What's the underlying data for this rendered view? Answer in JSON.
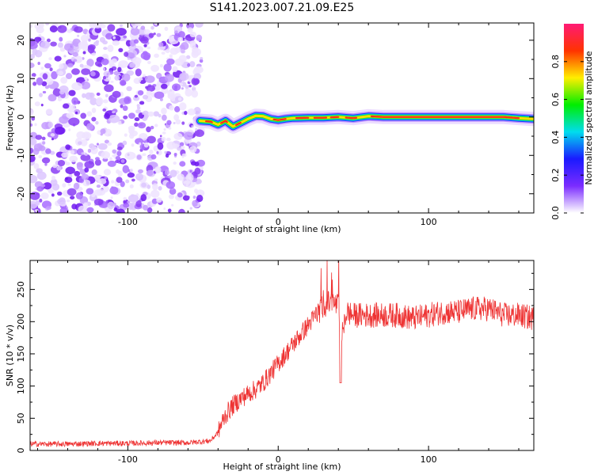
{
  "figure": {
    "title": "S141.2023.007.21.09.E25"
  },
  "chart_data": [
    {
      "type": "heatmap",
      "title": "S141.2023.007.21.09.E25",
      "xlabel": "Height of straight line (km)",
      "ylabel": "Frequency (Hz)",
      "xlim": [
        -165,
        170
      ],
      "ylim": [
        -25,
        24.5
      ],
      "xticks": [
        -100,
        0,
        100
      ],
      "yticks": [
        -20,
        -10,
        0,
        10,
        20
      ],
      "noise_region_x": [
        -165,
        -55
      ],
      "signal_trace": {
        "x": [
          -52,
          -45,
          -40,
          -35,
          -30,
          -25,
          -20,
          -15,
          -10,
          -5,
          0,
          5,
          10,
          20,
          30,
          40,
          50,
          60,
          70,
          80,
          90,
          100,
          110,
          120,
          130,
          140,
          150,
          160,
          170
        ],
        "freq": [
          -1.0,
          -1.2,
          -2.0,
          -1.0,
          -2.5,
          -1.5,
          -0.5,
          0.3,
          0.2,
          -0.5,
          -0.8,
          -0.5,
          -0.3,
          -0.2,
          -0.2,
          0.0,
          -0.3,
          0.2,
          0.0,
          0.0,
          0.0,
          0.0,
          0.0,
          0.0,
          0.0,
          0.0,
          0.0,
          -0.3,
          -0.5
        ]
      },
      "colorbar": {
        "label": "Normalized spectral amplitude",
        "range": [
          0,
          1
        ],
        "ticks": [
          "0.0",
          "0.2",
          "0.4",
          "0.6",
          "0.8"
        ],
        "colors": [
          "#ffffff",
          "#7b2cff",
          "#1a1aff",
          "#00ddee",
          "#00ee00",
          "#ffee00",
          "#ff3300",
          "#ff1a75"
        ]
      }
    },
    {
      "type": "line",
      "xlabel": "Height of straight line (km)",
      "ylabel": "SNR (10 * v/v)",
      "xlim": [
        -165,
        170
      ],
      "ylim": [
        0,
        295
      ],
      "xticks": [
        -100,
        0,
        100
      ],
      "yticks": [
        0,
        50,
        100,
        150,
        200,
        250
      ],
      "color": "#ee3333",
      "series": [
        {
          "x": [
            -165,
            -140,
            -120,
            -100,
            -80,
            -60,
            -45,
            -40,
            -38,
            -35,
            -30,
            -25,
            -20,
            -15,
            -10,
            -5,
            0,
            5,
            10,
            15,
            20,
            25,
            30,
            35,
            40,
            42,
            45,
            50,
            60,
            70,
            80,
            90,
            100,
            110,
            120,
            130,
            140,
            150,
            160,
            170
          ],
          "values": [
            10,
            10,
            11,
            11,
            12,
            12,
            15,
            28,
            40,
            55,
            70,
            80,
            88,
            95,
            105,
            120,
            135,
            150,
            165,
            180,
            195,
            210,
            225,
            230,
            225,
            150,
            215,
            210,
            210,
            210,
            210,
            205,
            210,
            215,
            215,
            220,
            220,
            210,
            210,
            205
          ]
        }
      ]
    }
  ]
}
